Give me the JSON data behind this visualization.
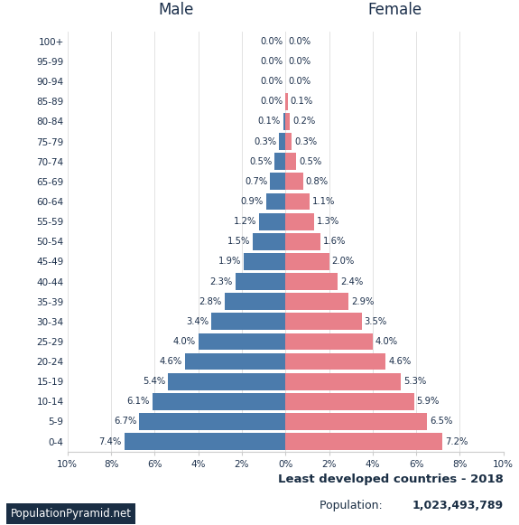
{
  "age_groups": [
    "0-4",
    "5-9",
    "10-14",
    "15-19",
    "20-24",
    "25-29",
    "30-34",
    "35-39",
    "40-44",
    "45-49",
    "50-54",
    "55-59",
    "60-64",
    "65-69",
    "70-74",
    "75-79",
    "80-84",
    "85-89",
    "90-94",
    "95-99",
    "100+"
  ],
  "male": [
    7.4,
    6.7,
    6.1,
    5.4,
    4.6,
    4.0,
    3.4,
    2.8,
    2.3,
    1.9,
    1.5,
    1.2,
    0.9,
    0.7,
    0.5,
    0.3,
    0.1,
    0.0,
    0.0,
    0.0,
    0.0
  ],
  "female": [
    7.2,
    6.5,
    5.9,
    5.3,
    4.6,
    4.0,
    3.5,
    2.9,
    2.4,
    2.0,
    1.6,
    1.3,
    1.1,
    0.8,
    0.5,
    0.3,
    0.2,
    0.1,
    0.0,
    0.0,
    0.0
  ],
  "male_color": "#4b7bac",
  "female_color": "#e8808a",
  "background_color": "#ffffff",
  "title_line1": "Least developed countries - 2018",
  "title_line2_prefix": "Population: ",
  "title_line2_bold": "1,023,493,789",
  "xlim": 10.0,
  "xlabel_male": "Male",
  "xlabel_female": "Female",
  "watermark": "PopulationPyramid.net",
  "bar_height": 0.85,
  "label_color": "#1a2e4a",
  "grid_color": "#dddddd",
  "spine_color": "#cccccc"
}
